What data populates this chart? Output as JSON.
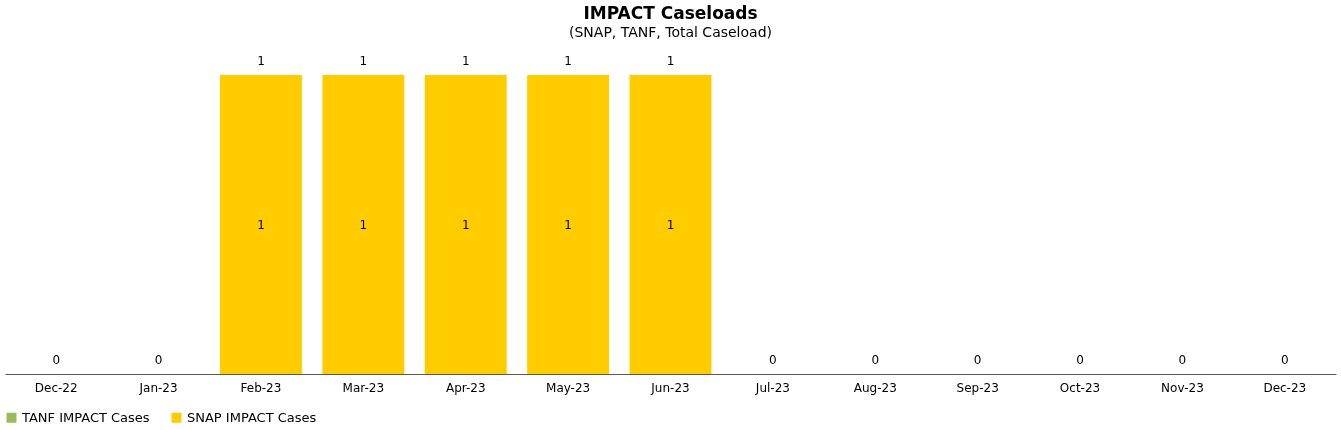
{
  "chart_data": {
    "type": "bar",
    "title": "IMPACT Caseloads",
    "subtitle": "(SNAP, TANF, Total Caseload)",
    "categories": [
      "Dec-22",
      "Jan-23",
      "Feb-23",
      "Mar-23",
      "Apr-23",
      "May-23",
      "Jun-23",
      "Jul-23",
      "Aug-23",
      "Sep-23",
      "Oct-23",
      "Nov-23",
      "Dec-23"
    ],
    "stacked": true,
    "legend": "bottom",
    "series": [
      {
        "name": "TANF IMPACT Cases",
        "color": "#9bbb59",
        "values": [
          0,
          0,
          0,
          0,
          0,
          0,
          0,
          0,
          0,
          0,
          0,
          0,
          0
        ]
      },
      {
        "name": "SNAP IMPACT Cases",
        "color": "#ffcc00",
        "values": [
          0,
          0,
          1,
          1,
          1,
          1,
          1,
          0,
          0,
          0,
          0,
          0,
          0
        ],
        "value_labels": [
          null,
          null,
          "1",
          "1",
          "1",
          "1",
          "1",
          null,
          null,
          null,
          null,
          null,
          null
        ]
      }
    ],
    "totals": [
      "0",
      "0",
      "1",
      "1",
      "1",
      "1",
      "1",
      "0",
      "0",
      "0",
      "0",
      "0",
      "0"
    ]
  }
}
